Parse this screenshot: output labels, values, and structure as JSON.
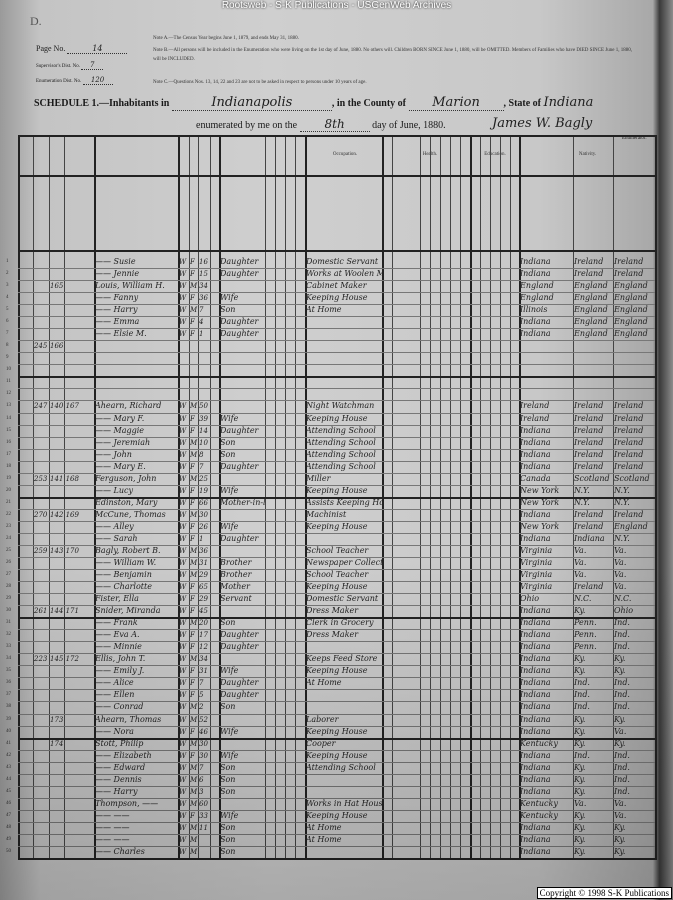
{
  "watermark_title": "Rootsweb - S-K Publications - USGenWeb Archives",
  "header": {
    "corner_letter": "D.",
    "page_no_label": "Page No.",
    "page_no": "14",
    "supervisor_label": "Supervisor's Dist. No.",
    "supervisor_no": "7",
    "enumeration_label": "Enumeration Dist. No.",
    "enumeration_no": "120",
    "note_a": "Note A.—The Census Year begins June 1, 1879, and ends May 31, 1880.",
    "note_b": "Note B.—All persons will be included in the Enumeration who were living on the 1st day of June, 1880. No others will. Children BORN SINCE June 1, 1880, will be OMITTED. Members of Families who have DIED SINCE June 1, 1880, will be INCLUDED.",
    "note_c": "Note C.—Questions Nos. 13, 14, 22 and 23 are not to be asked in respect to persons under 10 years of age.",
    "schedule_label": "SCHEDULE 1.—Inhabitants in",
    "place": "Indianapolis",
    "county_label": ", in the County of",
    "county": "Marion",
    "state_label": ", State of",
    "state": "Indiana",
    "enumerated_label": "enumerated by me on the",
    "day": "8th",
    "date_suffix": "day of June, 1880.",
    "enumerator_signature": "James W. Bagly",
    "enumerator_label": "Enumerator."
  },
  "column_headers": {
    "occupation": "Occupation.",
    "health": "Health.",
    "education": "Education.",
    "nativity": "Nativity."
  },
  "rows": [
    {
      "n": "1",
      "dw": "",
      "fam": "",
      "name": "—— Susie",
      "color": "W",
      "sex": "F",
      "age": "16",
      "rel": "Daughter",
      "occ": "Domestic Servant",
      "b": "Indiana",
      "bf": "Ireland",
      "bm": "Ireland"
    },
    {
      "n": "2",
      "dw": "",
      "fam": "",
      "name": "—— Jennie",
      "color": "W",
      "sex": "F",
      "age": "15",
      "rel": "Daughter",
      "occ": "Works at Woolen Mill",
      "b": "Indiana",
      "bf": "Ireland",
      "bm": "Ireland"
    },
    {
      "n": "3",
      "dw": "",
      "fam": "165",
      "name": "Louis, William H.",
      "color": "W",
      "sex": "M",
      "age": "34",
      "rel": "",
      "occ": "Cabinet Maker",
      "b": "England",
      "bf": "England",
      "bm": "England"
    },
    {
      "n": "4",
      "dw": "",
      "fam": "",
      "name": "—— Fanny",
      "color": "W",
      "sex": "F",
      "age": "36",
      "rel": "Wife",
      "occ": "Keeping House",
      "b": "England",
      "bf": "England",
      "bm": "England"
    },
    {
      "n": "5",
      "dw": "",
      "fam": "",
      "name": "—— Harry",
      "color": "W",
      "sex": "M",
      "age": "7",
      "rel": "Son",
      "occ": "At Home",
      "b": "Illinois",
      "bf": "England",
      "bm": "England"
    },
    {
      "n": "6",
      "dw": "",
      "fam": "",
      "name": "—— Emma",
      "color": "W",
      "sex": "F",
      "age": "4",
      "rel": "Daughter",
      "occ": "",
      "b": "Indiana",
      "bf": "England",
      "bm": "England"
    },
    {
      "n": "7",
      "dw": "",
      "fam": "",
      "name": "—— Elsie M.",
      "color": "W",
      "sex": "F",
      "age": "1",
      "rel": "Daughter",
      "occ": "",
      "b": "Indiana",
      "bf": "England",
      "bm": "England"
    },
    {
      "n": "8",
      "dw": "245",
      "fam": "166",
      "name": "",
      "color": "",
      "sex": "",
      "age": "",
      "rel": "",
      "occ": "",
      "b": "",
      "bf": "",
      "bm": ""
    },
    {
      "n": "9",
      "dw": "",
      "fam": "",
      "name": "",
      "color": "",
      "sex": "",
      "age": "",
      "rel": "",
      "occ": "",
      "b": "",
      "bf": "",
      "bm": ""
    },
    {
      "n": "10",
      "dw": "",
      "fam": "",
      "name": "",
      "color": "",
      "sex": "",
      "age": "",
      "rel": "",
      "occ": "",
      "b": "",
      "bf": "",
      "bm": ""
    },
    {
      "n": "11",
      "dw": "",
      "fam": "",
      "name": "",
      "color": "",
      "sex": "",
      "age": "",
      "rel": "",
      "occ": "",
      "b": "",
      "bf": "",
      "bm": ""
    },
    {
      "n": "12",
      "dw": "",
      "fam": "",
      "name": "",
      "color": "",
      "sex": "",
      "age": "",
      "rel": "",
      "occ": "",
      "b": "",
      "bf": "",
      "bm": ""
    },
    {
      "n": "13",
      "dw": "247",
      "fam": "140 167",
      "name": "Ahearn, Richard",
      "color": "W",
      "sex": "M",
      "age": "50",
      "rel": "",
      "occ": "Night Watchman",
      "b": "Ireland",
      "bf": "Ireland",
      "bm": "Ireland"
    },
    {
      "n": "14",
      "dw": "",
      "fam": "",
      "name": "—— Mary F.",
      "color": "W",
      "sex": "F",
      "age": "39",
      "rel": "Wife",
      "occ": "Keeping House",
      "b": "Ireland",
      "bf": "Ireland",
      "bm": "Ireland"
    },
    {
      "n": "15",
      "dw": "",
      "fam": "",
      "name": "—— Maggie",
      "color": "W",
      "sex": "F",
      "age": "14",
      "rel": "Daughter",
      "occ": "Attending School",
      "b": "Indiana",
      "bf": "Ireland",
      "bm": "Ireland"
    },
    {
      "n": "16",
      "dw": "",
      "fam": "",
      "name": "—— Jeremiah",
      "color": "W",
      "sex": "M",
      "age": "10",
      "rel": "Son",
      "occ": "Attending School",
      "b": "Indiana",
      "bf": "Ireland",
      "bm": "Ireland"
    },
    {
      "n": "17",
      "dw": "",
      "fam": "",
      "name": "—— John",
      "color": "W",
      "sex": "M",
      "age": "8",
      "rel": "Son",
      "occ": "Attending School",
      "b": "Indiana",
      "bf": "Ireland",
      "bm": "Ireland"
    },
    {
      "n": "18",
      "dw": "",
      "fam": "",
      "name": "—— Mary E.",
      "color": "W",
      "sex": "F",
      "age": "7",
      "rel": "Daughter",
      "occ": "Attending School",
      "b": "Indiana",
      "bf": "Ireland",
      "bm": "Ireland"
    },
    {
      "n": "19",
      "dw": "253",
      "fam": "141 168",
      "name": "Ferguson, John",
      "color": "W",
      "sex": "M",
      "age": "25",
      "rel": "",
      "occ": "Miller",
      "b": "Canada",
      "bf": "Scotland",
      "bm": "Scotland"
    },
    {
      "n": "20",
      "dw": "",
      "fam": "",
      "name": "—— Lucy",
      "color": "W",
      "sex": "F",
      "age": "19",
      "rel": "Wife",
      "occ": "Keeping House",
      "b": "New York",
      "bf": "N.Y.",
      "bm": "N.Y."
    },
    {
      "n": "21",
      "dw": "",
      "fam": "",
      "name": "Edinston, Mary",
      "color": "W",
      "sex": "F",
      "age": "66",
      "rel": "Mother-in-law",
      "occ": "Assists Keeping House",
      "b": "New York",
      "bf": "N.Y.",
      "bm": "N.Y."
    },
    {
      "n": "22",
      "dw": "270",
      "fam": "142 169",
      "name": "McCune, Thomas",
      "color": "W",
      "sex": "M",
      "age": "30",
      "rel": "",
      "occ": "Machinist",
      "b": "Indiana",
      "bf": "Ireland",
      "bm": "Ireland"
    },
    {
      "n": "23",
      "dw": "",
      "fam": "",
      "name": "—— Alley",
      "color": "W",
      "sex": "F",
      "age": "26",
      "rel": "Wife",
      "occ": "Keeping House",
      "b": "New York",
      "bf": "Ireland",
      "bm": "England"
    },
    {
      "n": "24",
      "dw": "",
      "fam": "",
      "name": "—— Sarah",
      "color": "W",
      "sex": "F",
      "age": "1",
      "rel": "Daughter",
      "occ": "",
      "b": "Indiana",
      "bf": "Indiana",
      "bm": "N.Y."
    },
    {
      "n": "25",
      "dw": "259",
      "fam": "143 170",
      "name": "Bagly, Robert B.",
      "color": "W",
      "sex": "M",
      "age": "36",
      "rel": "",
      "occ": "School Teacher",
      "b": "Virginia",
      "bf": "Va.",
      "bm": "Va."
    },
    {
      "n": "26",
      "dw": "",
      "fam": "",
      "name": "—— William W.",
      "color": "W",
      "sex": "M",
      "age": "31",
      "rel": "Brother",
      "occ": "Newspaper Collector",
      "b": "Virginia",
      "bf": "Va.",
      "bm": "Va."
    },
    {
      "n": "27",
      "dw": "",
      "fam": "",
      "name": "—— Benjamin",
      "color": "W",
      "sex": "M",
      "age": "29",
      "rel": "Brother",
      "occ": "School Teacher",
      "b": "Virginia",
      "bf": "Va.",
      "bm": "Va."
    },
    {
      "n": "28",
      "dw": "",
      "fam": "",
      "name": "—— Charlotte",
      "color": "W",
      "sex": "F",
      "age": "65",
      "rel": "Mother",
      "occ": "Keeping House",
      "b": "Virginia",
      "bf": "Ireland",
      "bm": "Va."
    },
    {
      "n": "29",
      "dw": "",
      "fam": "",
      "name": "Fister, Ella",
      "color": "W",
      "sex": "F",
      "age": "29",
      "rel": "Servant",
      "occ": "Domestic Servant",
      "b": "Ohio",
      "bf": "N.C.",
      "bm": "N.C."
    },
    {
      "n": "30",
      "dw": "261",
      "fam": "144 171",
      "name": "Snider, Miranda",
      "color": "W",
      "sex": "F",
      "age": "45",
      "rel": "",
      "occ": "Dress Maker",
      "b": "Indiana",
      "bf": "Ky.",
      "bm": "Ohio"
    },
    {
      "n": "31",
      "dw": "",
      "fam": "",
      "name": "—— Frank",
      "color": "W",
      "sex": "M",
      "age": "20",
      "rel": "Son",
      "occ": "Clerk in Grocery",
      "b": "Indiana",
      "bf": "Penn.",
      "bm": "Ind."
    },
    {
      "n": "32",
      "dw": "",
      "fam": "",
      "name": "—— Eva A.",
      "color": "W",
      "sex": "F",
      "age": "17",
      "rel": "Daughter",
      "occ": "Dress Maker",
      "b": "Indiana",
      "bf": "Penn.",
      "bm": "Ind."
    },
    {
      "n": "33",
      "dw": "",
      "fam": "",
      "name": "—— Minnie",
      "color": "W",
      "sex": "F",
      "age": "12",
      "rel": "Daughter",
      "occ": "",
      "b": "Indiana",
      "bf": "Penn.",
      "bm": "Ind."
    },
    {
      "n": "34",
      "dw": "223",
      "fam": "145 172",
      "name": "Ellis, John T.",
      "color": "W",
      "sex": "M",
      "age": "34",
      "rel": "",
      "occ": "Keeps Feed Store",
      "b": "Indiana",
      "bf": "Ky.",
      "bm": "Ky."
    },
    {
      "n": "35",
      "dw": "",
      "fam": "",
      "name": "—— Emily J.",
      "color": "W",
      "sex": "F",
      "age": "31",
      "rel": "Wife",
      "occ": "Keeping House",
      "b": "Indiana",
      "bf": "Ky.",
      "bm": "Ky."
    },
    {
      "n": "36",
      "dw": "",
      "fam": "",
      "name": "—— Alice",
      "color": "W",
      "sex": "F",
      "age": "7",
      "rel": "Daughter",
      "occ": "At Home",
      "b": "Indiana",
      "bf": "Ind.",
      "bm": "Ind."
    },
    {
      "n": "37",
      "dw": "",
      "fam": "",
      "name": "—— Ellen",
      "color": "W",
      "sex": "F",
      "age": "5",
      "rel": "Daughter",
      "occ": "",
      "b": "Indiana",
      "bf": "Ind.",
      "bm": "Ind."
    },
    {
      "n": "38",
      "dw": "",
      "fam": "",
      "name": "—— Conrad",
      "color": "W",
      "sex": "M",
      "age": "2",
      "rel": "Son",
      "occ": "",
      "b": "Indiana",
      "bf": "Ind.",
      "bm": "Ind."
    },
    {
      "n": "39",
      "dw": "",
      "fam": "173",
      "name": "Ahearn, Thomas",
      "color": "W",
      "sex": "M",
      "age": "52",
      "rel": "",
      "occ": "Laborer",
      "b": "Indiana",
      "bf": "Ky.",
      "bm": "Ky."
    },
    {
      "n": "40",
      "dw": "",
      "fam": "",
      "name": "—— Nora",
      "color": "W",
      "sex": "F",
      "age": "46",
      "rel": "Wife",
      "occ": "Keeping House",
      "b": "Indiana",
      "bf": "Ky.",
      "bm": "Va."
    },
    {
      "n": "41",
      "dw": "",
      "fam": "174",
      "name": "Stott, Philip",
      "color": "W",
      "sex": "M",
      "age": "30",
      "rel": "",
      "occ": "Cooper",
      "b": "Kentucky",
      "bf": "Ky.",
      "bm": "Ky."
    },
    {
      "n": "42",
      "dw": "",
      "fam": "",
      "name": "—— Elizabeth",
      "color": "W",
      "sex": "F",
      "age": "30",
      "rel": "Wife",
      "occ": "Keeping House",
      "b": "Indiana",
      "bf": "Ind.",
      "bm": "Ind."
    },
    {
      "n": "43",
      "dw": "",
      "fam": "",
      "name": "—— Edward",
      "color": "W",
      "sex": "M",
      "age": "7",
      "rel": "Son",
      "occ": "Attending School",
      "b": "Indiana",
      "bf": "Ky.",
      "bm": "Ind."
    },
    {
      "n": "44",
      "dw": "",
      "fam": "",
      "name": "—— Dennis",
      "color": "W",
      "sex": "M",
      "age": "6",
      "rel": "Son",
      "occ": "",
      "b": "Indiana",
      "bf": "Ky.",
      "bm": "Ind."
    },
    {
      "n": "45",
      "dw": "",
      "fam": "",
      "name": "—— Harry",
      "color": "W",
      "sex": "M",
      "age": "3",
      "rel": "Son",
      "occ": "",
      "b": "Indiana",
      "bf": "Ky.",
      "bm": "Ind."
    },
    {
      "n": "46",
      "dw": "",
      "fam": "",
      "name": "Thompson, ——",
      "color": "W",
      "sex": "M",
      "age": "60",
      "rel": "",
      "occ": "Works in Hat House",
      "b": "Kentucky",
      "bf": "Va.",
      "bm": "Va."
    },
    {
      "n": "47",
      "dw": "",
      "fam": "",
      "name": "—— ——",
      "color": "W",
      "sex": "F",
      "age": "33",
      "rel": "Wife",
      "occ": "Keeping House",
      "b": "Kentucky",
      "bf": "Ky.",
      "bm": "Va."
    },
    {
      "n": "48",
      "dw": "",
      "fam": "",
      "name": "—— ——",
      "color": "W",
      "sex": "M",
      "age": "11",
      "rel": "Son",
      "occ": "At Home",
      "b": "Indiana",
      "bf": "Ky.",
      "bm": "Ky."
    },
    {
      "n": "49",
      "dw": "",
      "fam": "",
      "name": "—— ——",
      "color": "W",
      "sex": "M",
      "age": "",
      "rel": "Son",
      "occ": "At Home",
      "b": "Indiana",
      "bf": "Ky.",
      "bm": "Ky."
    },
    {
      "n": "50",
      "dw": "",
      "fam": "",
      "name": "—— Charles",
      "color": "W",
      "sex": "M",
      "age": "",
      "rel": "Son",
      "occ": "",
      "b": "Indiana",
      "bf": "Ky.",
      "bm": "Ky."
    }
  ],
  "copyright": "Copyright © 1998 S-K Publications"
}
